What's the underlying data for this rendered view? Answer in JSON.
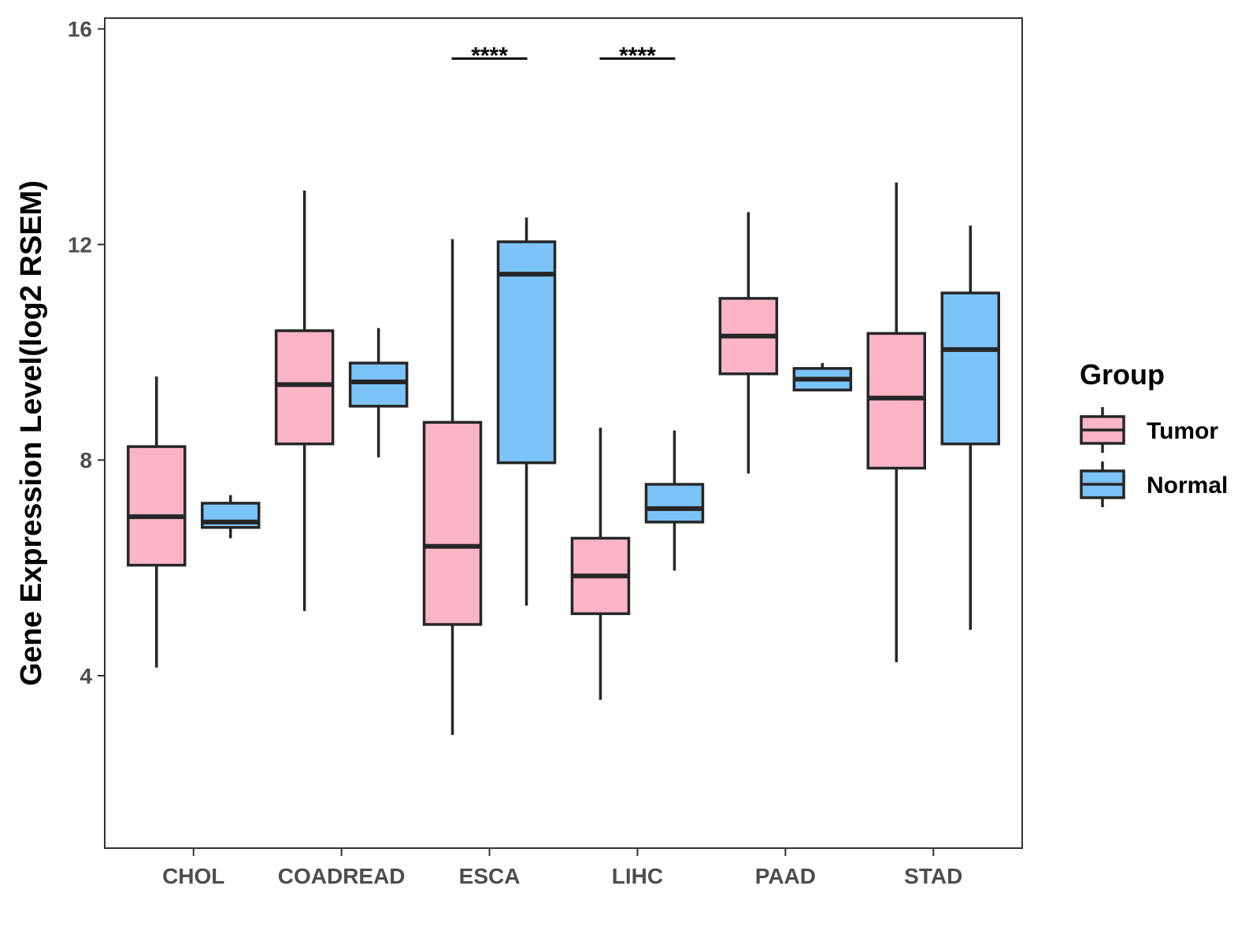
{
  "chart_data": {
    "type": "boxplot",
    "title": "",
    "xlabel": "",
    "ylabel": "Gene Expression Level(log2 RSEM)",
    "ylim": [
      0.8,
      16.2
    ],
    "yticks": [
      4,
      8,
      12,
      16
    ],
    "grid": false,
    "legend": {
      "title": "Group",
      "position": "right",
      "entries": [
        {
          "name": "Tumor",
          "color": "#FBB4C6"
        },
        {
          "name": "Normal",
          "color": "#7BC3F8"
        }
      ]
    },
    "categories": [
      "CHOL",
      "COADREAD",
      "ESCA",
      "LIHC",
      "PAAD",
      "STAD"
    ],
    "series": [
      {
        "name": "Tumor",
        "color": "#FBB4C6",
        "boxes": [
          {
            "category": "CHOL",
            "min": 4.15,
            "q1": 6.05,
            "median": 6.95,
            "q3": 8.25,
            "max": 9.55
          },
          {
            "category": "COADREAD",
            "min": 5.2,
            "q1": 8.3,
            "median": 9.4,
            "q3": 10.4,
            "max": 13.0
          },
          {
            "category": "ESCA",
            "min": 2.9,
            "q1": 4.95,
            "median": 6.4,
            "q3": 8.7,
            "max": 12.1
          },
          {
            "category": "LIHC",
            "min": 3.55,
            "q1": 5.15,
            "median": 5.85,
            "q3": 6.55,
            "max": 8.6
          },
          {
            "category": "PAAD",
            "min": 7.75,
            "q1": 9.6,
            "median": 10.3,
            "q3": 11.0,
            "max": 12.6
          },
          {
            "category": "STAD",
            "min": 4.25,
            "q1": 7.85,
            "median": 9.15,
            "q3": 10.35,
            "max": 13.15
          }
        ]
      },
      {
        "name": "Normal",
        "color": "#7BC3F8",
        "boxes": [
          {
            "category": "CHOL",
            "min": 6.55,
            "q1": 6.75,
            "median": 6.85,
            "q3": 7.2,
            "max": 7.35
          },
          {
            "category": "COADREAD",
            "min": 8.05,
            "q1": 9.0,
            "median": 9.45,
            "q3": 9.8,
            "max": 10.45
          },
          {
            "category": "ESCA",
            "min": 5.3,
            "q1": 7.95,
            "median": 11.45,
            "q3": 12.05,
            "max": 12.5
          },
          {
            "category": "LIHC",
            "min": 5.95,
            "q1": 6.85,
            "median": 7.1,
            "q3": 7.55,
            "max": 8.55
          },
          {
            "category": "PAAD",
            "min": 9.3,
            "q1": 9.3,
            "median": 9.5,
            "q3": 9.7,
            "max": 9.8
          },
          {
            "category": "STAD",
            "min": 4.85,
            "q1": 8.3,
            "median": 10.05,
            "q3": 11.1,
            "max": 12.35
          }
        ]
      }
    ],
    "annotations": [
      {
        "category": "ESCA",
        "text": "****",
        "y": 15.45
      },
      {
        "category": "LIHC",
        "text": "****",
        "y": 15.45
      }
    ]
  }
}
